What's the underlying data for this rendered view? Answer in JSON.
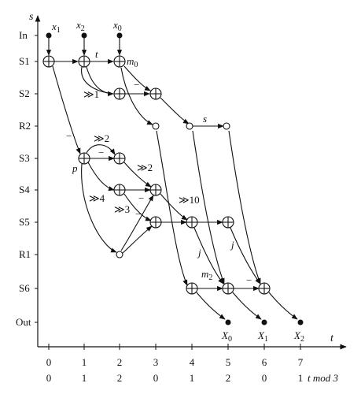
{
  "axes": {
    "x_title": "t",
    "y_title": "s",
    "x_ticks": [
      "0",
      "1",
      "2",
      "3",
      "4",
      "5",
      "6",
      "7"
    ],
    "mod_ticks": [
      "0",
      "1",
      "2",
      "0",
      "1",
      "2",
      "0",
      "1"
    ],
    "mod_suffix": "t mod 3",
    "rows": [
      "In",
      "S1",
      "S2",
      "R2",
      "S3",
      "S4",
      "S5",
      "R1",
      "S6",
      "Out"
    ]
  },
  "inputs": {
    "x1": "x",
    "x1_sub": "1",
    "x2": "x",
    "x2_sub": "2",
    "x0": "x",
    "x0_sub": "0"
  },
  "outputs": {
    "X0": "X",
    "X0_sub": "0",
    "X1": "X",
    "X1_sub": "1",
    "X2": "X",
    "X2_sub": "2"
  },
  "annotations": {
    "t": "t",
    "m0": "m",
    "m0_sub": "0",
    "s": "s",
    "p": "p",
    "j1": "j",
    "j2": "j",
    "m2": "m",
    "m2_sub": "2",
    "shift1": "≫1",
    "shift2a": "≫2",
    "shift2b": "≫2",
    "shift4": "≫4",
    "shift3": "≫3",
    "shift10": "≫10",
    "minus_a": "−",
    "minus_b": "−",
    "minus_c": "−",
    "minus_d": "−",
    "minus_e": "−",
    "minus_f": "−"
  }
}
